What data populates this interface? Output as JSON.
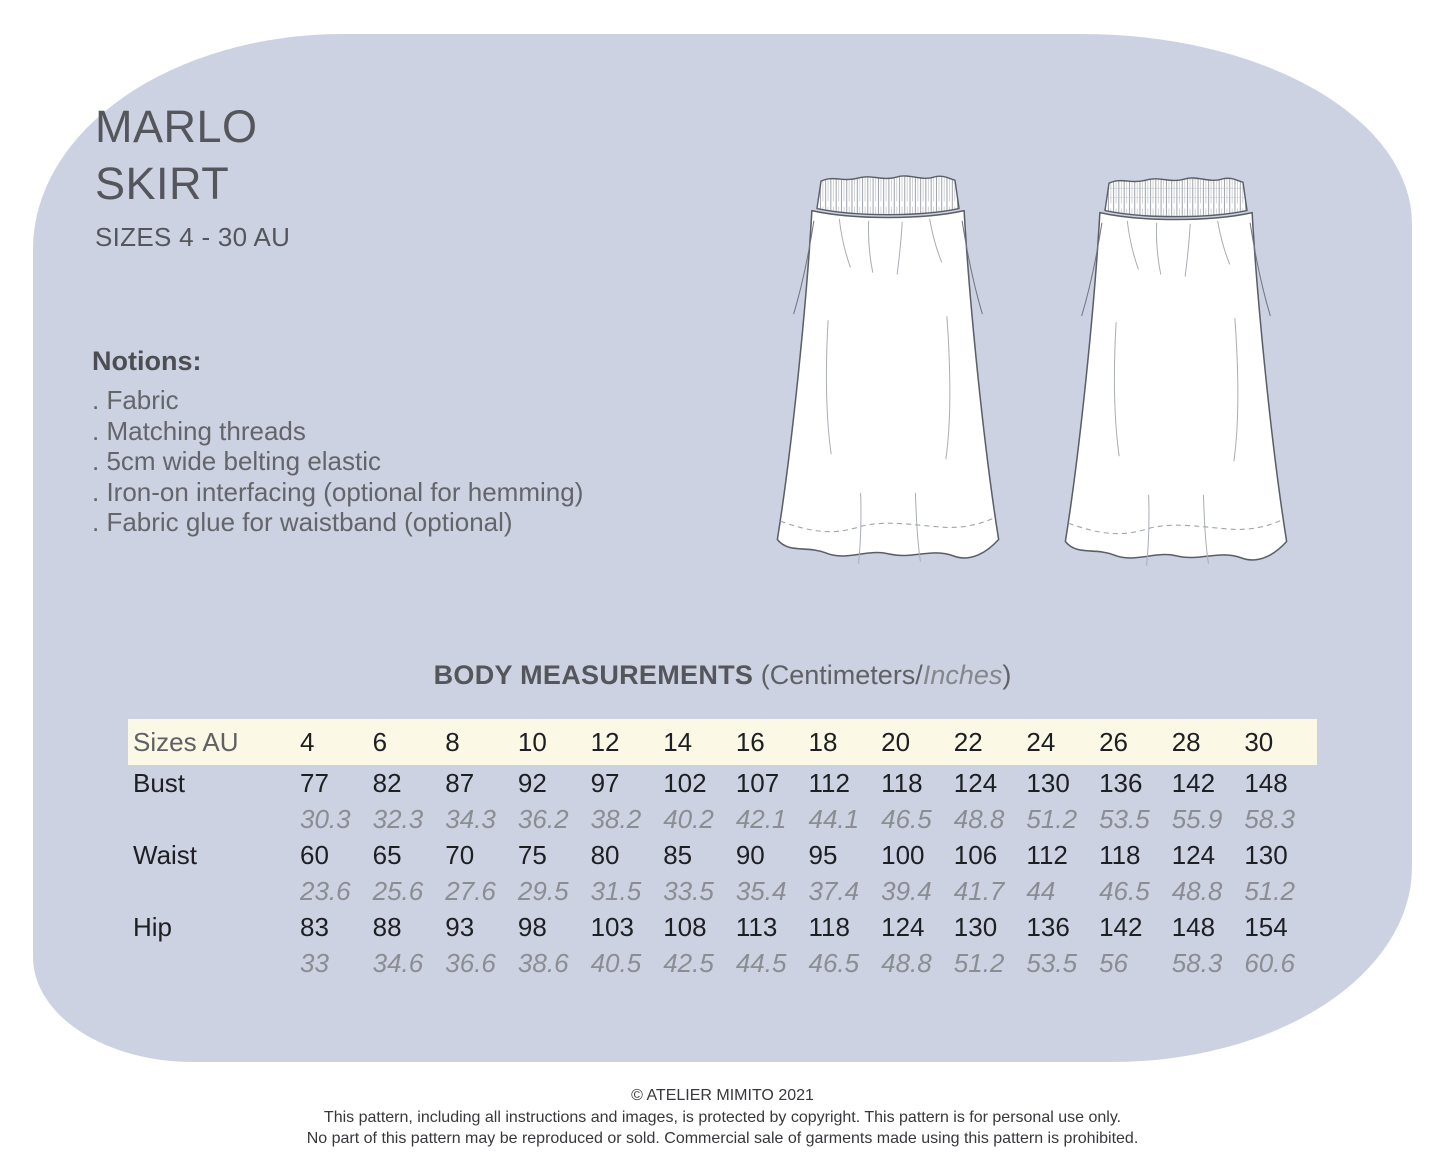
{
  "header": {
    "title_line1": "MARLO",
    "title_line2": "SKIRT",
    "subtitle": "SIZES 4 - 30 AU"
  },
  "notions": {
    "heading": "Notions:",
    "items": [
      ". Fabric",
      ". Matching threads",
      ". 5cm wide belting elastic",
      ". Iron-on interfacing (optional for hemming)",
      ". Fabric glue for waistband (optional)"
    ]
  },
  "figures": {
    "front_icon": "skirt-front-flat-drawing-icon",
    "back_icon": "skirt-back-flat-drawing-icon"
  },
  "measurements": {
    "title": "BODY MEASUREMENTS",
    "units_prefix": "(Centimeters/",
    "units_italic": "Inches",
    "units_suffix": ")",
    "header_label": "Sizes AU",
    "sizes": [
      "4",
      "6",
      "8",
      "10",
      "12",
      "14",
      "16",
      "18",
      "20",
      "22",
      "24",
      "26",
      "28",
      "30"
    ],
    "rows": [
      {
        "label": "Bust",
        "cm": [
          "77",
          "82",
          "87",
          "92",
          "97",
          "102",
          "107",
          "112",
          "118",
          "124",
          "130",
          "136",
          "142",
          "148"
        ],
        "inches": [
          "30.3",
          "32.3",
          "34.3",
          "36.2",
          "38.2",
          "40.2",
          "42.1",
          "44.1",
          "46.5",
          "48.8",
          "51.2",
          "53.5",
          "55.9",
          "58.3"
        ]
      },
      {
        "label": "Waist",
        "cm": [
          "60",
          "65",
          "70",
          "75",
          "80",
          "85",
          "90",
          "95",
          "100",
          "106",
          "112",
          "118",
          "124",
          "130"
        ],
        "inches": [
          "23.6",
          "25.6",
          "27.6",
          "29.5",
          "31.5",
          "33.5",
          "35.4",
          "37.4",
          "39.4",
          "41.7",
          "44",
          "46.5",
          "48.8",
          "51.2"
        ]
      },
      {
        "label": "Hip",
        "cm": [
          "83",
          "88",
          "93",
          "98",
          "103",
          "108",
          "113",
          "118",
          "124",
          "130",
          "136",
          "142",
          "148",
          "154"
        ],
        "inches": [
          "33",
          "34.6",
          "36.6",
          "38.6",
          "40.5",
          "42.5",
          "44.5",
          "46.5",
          "48.8",
          "51.2",
          "53.5",
          "56",
          "58.3",
          "60.6"
        ]
      }
    ]
  },
  "footer": {
    "copyright": "© ATELIER MIMITO 2021",
    "line2": "This pattern, including all instructions and images, is protected by copyright. This pattern is for personal use only.",
    "line3": "No part of this pattern may be reproduced or sold. Commercial sale of garments made using this pattern is prohibited."
  },
  "colors": {
    "blob_background": "#cdd2e3",
    "band_background": "#fbf8e5",
    "text_dark": "#1e1f23",
    "text_gray": "#8b8d92"
  }
}
